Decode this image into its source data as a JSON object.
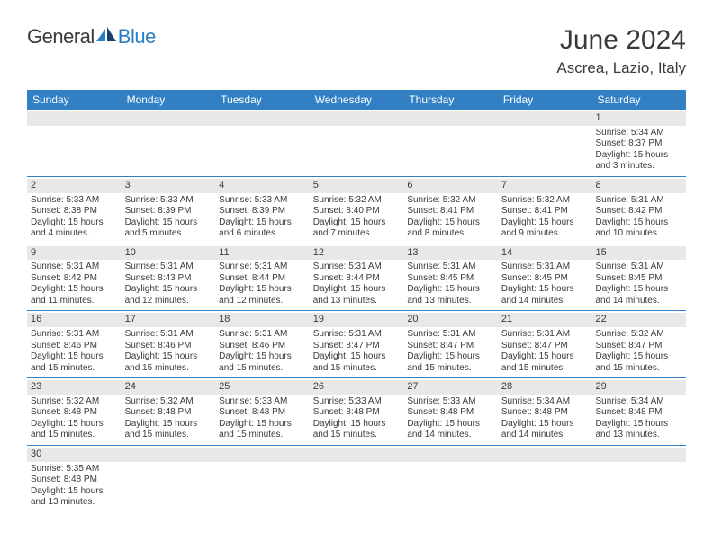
{
  "brand": {
    "part1": "General",
    "part2": "Blue"
  },
  "title": "June 2024",
  "location": "Ascrea, Lazio, Italy",
  "colors": {
    "header_bg": "#3280c3",
    "header_text": "#ffffff",
    "daynum_bg": "#e8e8e8",
    "text": "#3a3a3a",
    "rule": "#3280c3",
    "logo_accent": "#2a7ec6"
  },
  "dayNames": [
    "Sunday",
    "Monday",
    "Tuesday",
    "Wednesday",
    "Thursday",
    "Friday",
    "Saturday"
  ],
  "weeks": [
    [
      null,
      null,
      null,
      null,
      null,
      null,
      {
        "n": "1",
        "sr": "Sunrise: 5:34 AM",
        "ss": "Sunset: 8:37 PM",
        "d1": "Daylight: 15 hours",
        "d2": "and 3 minutes."
      }
    ],
    [
      {
        "n": "2",
        "sr": "Sunrise: 5:33 AM",
        "ss": "Sunset: 8:38 PM",
        "d1": "Daylight: 15 hours",
        "d2": "and 4 minutes."
      },
      {
        "n": "3",
        "sr": "Sunrise: 5:33 AM",
        "ss": "Sunset: 8:39 PM",
        "d1": "Daylight: 15 hours",
        "d2": "and 5 minutes."
      },
      {
        "n": "4",
        "sr": "Sunrise: 5:33 AM",
        "ss": "Sunset: 8:39 PM",
        "d1": "Daylight: 15 hours",
        "d2": "and 6 minutes."
      },
      {
        "n": "5",
        "sr": "Sunrise: 5:32 AM",
        "ss": "Sunset: 8:40 PM",
        "d1": "Daylight: 15 hours",
        "d2": "and 7 minutes."
      },
      {
        "n": "6",
        "sr": "Sunrise: 5:32 AM",
        "ss": "Sunset: 8:41 PM",
        "d1": "Daylight: 15 hours",
        "d2": "and 8 minutes."
      },
      {
        "n": "7",
        "sr": "Sunrise: 5:32 AM",
        "ss": "Sunset: 8:41 PM",
        "d1": "Daylight: 15 hours",
        "d2": "and 9 minutes."
      },
      {
        "n": "8",
        "sr": "Sunrise: 5:31 AM",
        "ss": "Sunset: 8:42 PM",
        "d1": "Daylight: 15 hours",
        "d2": "and 10 minutes."
      }
    ],
    [
      {
        "n": "9",
        "sr": "Sunrise: 5:31 AM",
        "ss": "Sunset: 8:42 PM",
        "d1": "Daylight: 15 hours",
        "d2": "and 11 minutes."
      },
      {
        "n": "10",
        "sr": "Sunrise: 5:31 AM",
        "ss": "Sunset: 8:43 PM",
        "d1": "Daylight: 15 hours",
        "d2": "and 12 minutes."
      },
      {
        "n": "11",
        "sr": "Sunrise: 5:31 AM",
        "ss": "Sunset: 8:44 PM",
        "d1": "Daylight: 15 hours",
        "d2": "and 12 minutes."
      },
      {
        "n": "12",
        "sr": "Sunrise: 5:31 AM",
        "ss": "Sunset: 8:44 PM",
        "d1": "Daylight: 15 hours",
        "d2": "and 13 minutes."
      },
      {
        "n": "13",
        "sr": "Sunrise: 5:31 AM",
        "ss": "Sunset: 8:45 PM",
        "d1": "Daylight: 15 hours",
        "d2": "and 13 minutes."
      },
      {
        "n": "14",
        "sr": "Sunrise: 5:31 AM",
        "ss": "Sunset: 8:45 PM",
        "d1": "Daylight: 15 hours",
        "d2": "and 14 minutes."
      },
      {
        "n": "15",
        "sr": "Sunrise: 5:31 AM",
        "ss": "Sunset: 8:45 PM",
        "d1": "Daylight: 15 hours",
        "d2": "and 14 minutes."
      }
    ],
    [
      {
        "n": "16",
        "sr": "Sunrise: 5:31 AM",
        "ss": "Sunset: 8:46 PM",
        "d1": "Daylight: 15 hours",
        "d2": "and 15 minutes."
      },
      {
        "n": "17",
        "sr": "Sunrise: 5:31 AM",
        "ss": "Sunset: 8:46 PM",
        "d1": "Daylight: 15 hours",
        "d2": "and 15 minutes."
      },
      {
        "n": "18",
        "sr": "Sunrise: 5:31 AM",
        "ss": "Sunset: 8:46 PM",
        "d1": "Daylight: 15 hours",
        "d2": "and 15 minutes."
      },
      {
        "n": "19",
        "sr": "Sunrise: 5:31 AM",
        "ss": "Sunset: 8:47 PM",
        "d1": "Daylight: 15 hours",
        "d2": "and 15 minutes."
      },
      {
        "n": "20",
        "sr": "Sunrise: 5:31 AM",
        "ss": "Sunset: 8:47 PM",
        "d1": "Daylight: 15 hours",
        "d2": "and 15 minutes."
      },
      {
        "n": "21",
        "sr": "Sunrise: 5:31 AM",
        "ss": "Sunset: 8:47 PM",
        "d1": "Daylight: 15 hours",
        "d2": "and 15 minutes."
      },
      {
        "n": "22",
        "sr": "Sunrise: 5:32 AM",
        "ss": "Sunset: 8:47 PM",
        "d1": "Daylight: 15 hours",
        "d2": "and 15 minutes."
      }
    ],
    [
      {
        "n": "23",
        "sr": "Sunrise: 5:32 AM",
        "ss": "Sunset: 8:48 PM",
        "d1": "Daylight: 15 hours",
        "d2": "and 15 minutes."
      },
      {
        "n": "24",
        "sr": "Sunrise: 5:32 AM",
        "ss": "Sunset: 8:48 PM",
        "d1": "Daylight: 15 hours",
        "d2": "and 15 minutes."
      },
      {
        "n": "25",
        "sr": "Sunrise: 5:33 AM",
        "ss": "Sunset: 8:48 PM",
        "d1": "Daylight: 15 hours",
        "d2": "and 15 minutes."
      },
      {
        "n": "26",
        "sr": "Sunrise: 5:33 AM",
        "ss": "Sunset: 8:48 PM",
        "d1": "Daylight: 15 hours",
        "d2": "and 15 minutes."
      },
      {
        "n": "27",
        "sr": "Sunrise: 5:33 AM",
        "ss": "Sunset: 8:48 PM",
        "d1": "Daylight: 15 hours",
        "d2": "and 14 minutes."
      },
      {
        "n": "28",
        "sr": "Sunrise: 5:34 AM",
        "ss": "Sunset: 8:48 PM",
        "d1": "Daylight: 15 hours",
        "d2": "and 14 minutes."
      },
      {
        "n": "29",
        "sr": "Sunrise: 5:34 AM",
        "ss": "Sunset: 8:48 PM",
        "d1": "Daylight: 15 hours",
        "d2": "and 13 minutes."
      }
    ],
    [
      {
        "n": "30",
        "sr": "Sunrise: 5:35 AM",
        "ss": "Sunset: 8:48 PM",
        "d1": "Daylight: 15 hours",
        "d2": "and 13 minutes."
      },
      null,
      null,
      null,
      null,
      null,
      null
    ]
  ]
}
